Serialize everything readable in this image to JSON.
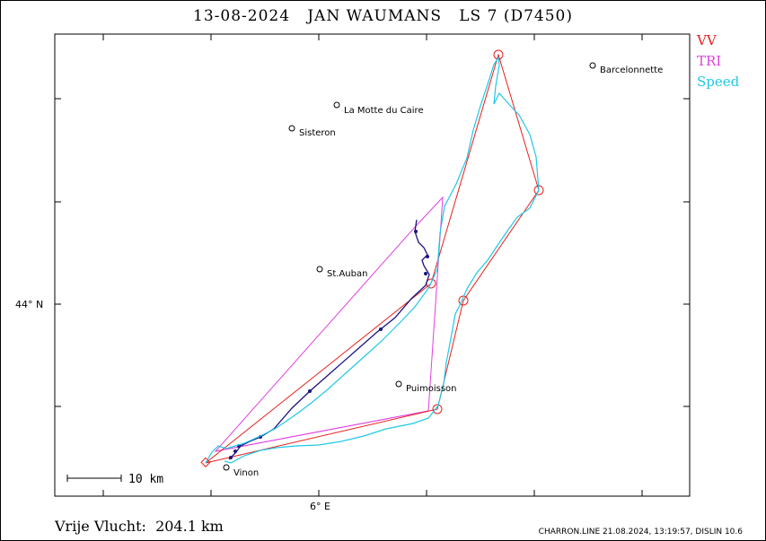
{
  "title": "13-08-2024   JAN WAUMANS   LS 7 (D7450)",
  "legend": [
    {
      "label": "VV",
      "color": "#e8201c"
    },
    {
      "label": "TRI",
      "color": "#e040e0"
    },
    {
      "label": "Speed",
      "color": "#20c8e8"
    }
  ],
  "axes": {
    "lat_label": "44° N",
    "lon_label": "6° E"
  },
  "scale_bar": "10 km",
  "towns": [
    {
      "name": "Barcelonnette"
    },
    {
      "name": "La Motte du Caire"
    },
    {
      "name": "Sisteron"
    },
    {
      "name": "St.Auban"
    },
    {
      "name": "Puimoisson"
    },
    {
      "name": "Vinon"
    }
  ],
  "distance": "Vrije Vlucht:  204.1 km",
  "footer": "CHARRON.LINE 21.08.2024, 13:19:57, DISLIN 10.6",
  "colors": {
    "track_low": "#1a1480",
    "track_speed": "#20c8e8",
    "free_flight": "#e8201c",
    "triangle": "#e040e0"
  }
}
